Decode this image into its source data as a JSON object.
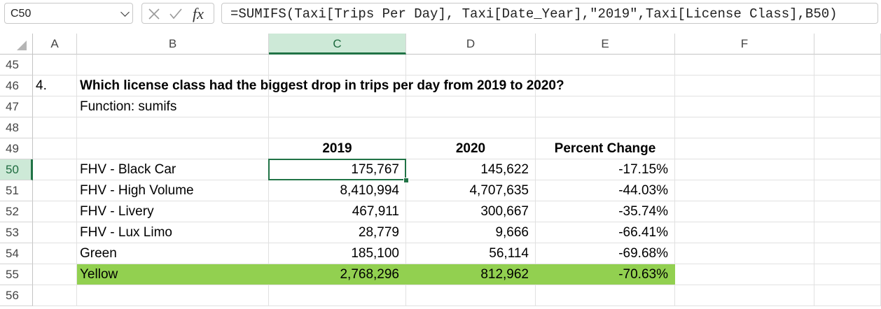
{
  "formula_bar": {
    "name_box": "C50",
    "formula": "=SUMIFS(Taxi[Trips Per Day], Taxi[Date_Year],\"2019\",Taxi[License Class],B50)",
    "icons": [
      "cancel-icon",
      "enter-check-icon",
      "fx-icon"
    ]
  },
  "columns": [
    "A",
    "B",
    "C",
    "D",
    "E",
    "F"
  ],
  "rows": [
    "45",
    "46",
    "47",
    "48",
    "49",
    "50",
    "51",
    "52",
    "53",
    "54",
    "55",
    "56"
  ],
  "selected_cell": {
    "column": "C",
    "row": "50"
  },
  "sheet": {
    "question_number": "4.",
    "question": "Which license class had the biggest drop in trips per day from 2019 to 2020?",
    "function_note": "Function: sumifs",
    "table_headers": {
      "y2019": "2019",
      "y2020": "2020",
      "pct": "Percent Change"
    },
    "highlight_color": "#92d050",
    "table_rows": [
      {
        "label": "FHV - Black Car",
        "y2019": "175,767",
        "y2020": "145,622",
        "pct": "-17.15%"
      },
      {
        "label": "FHV - High Volume",
        "y2019": "8,410,994",
        "y2020": "4,707,635",
        "pct": "-44.03%"
      },
      {
        "label": "FHV - Livery",
        "y2019": "467,911",
        "y2020": "300,667",
        "pct": "-35.74%"
      },
      {
        "label": "FHV - Lux Limo",
        "y2019": "28,779",
        "y2020": "9,666",
        "pct": "-66.41%"
      },
      {
        "label": "Green",
        "y2019": "185,100",
        "y2020": "56,114",
        "pct": "-69.68%"
      },
      {
        "label": "Yellow",
        "y2019": "2,768,296",
        "y2020": "812,962",
        "pct": "-70.63%",
        "highlighted": true
      }
    ]
  }
}
